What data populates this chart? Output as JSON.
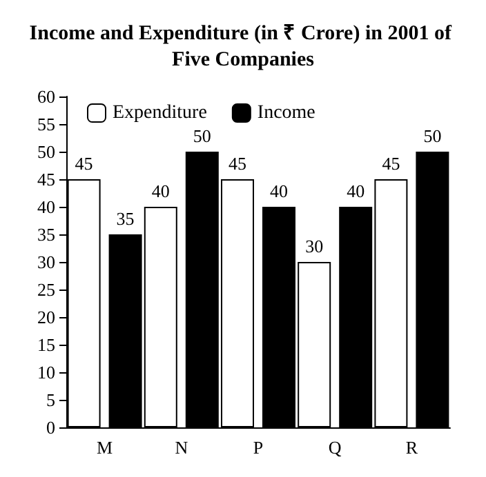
{
  "chart_data": {
    "type": "bar",
    "title": "Income and Expenditure (in ₹ Crore) in 2001 of Five Companies",
    "categories": [
      "M",
      "N",
      "P",
      "Q",
      "R"
    ],
    "series": [
      {
        "name": "Expenditure",
        "color": "#ffffff",
        "values": [
          45,
          40,
          45,
          30,
          45
        ]
      },
      {
        "name": "Income",
        "color": "#000000",
        "values": [
          35,
          50,
          40,
          40,
          50
        ]
      }
    ],
    "ylim": [
      0,
      60
    ],
    "yticks": [
      0,
      5,
      10,
      15,
      20,
      25,
      30,
      35,
      40,
      45,
      50,
      55,
      60
    ],
    "grid": false,
    "legend": "top left",
    "data_labels": true
  }
}
